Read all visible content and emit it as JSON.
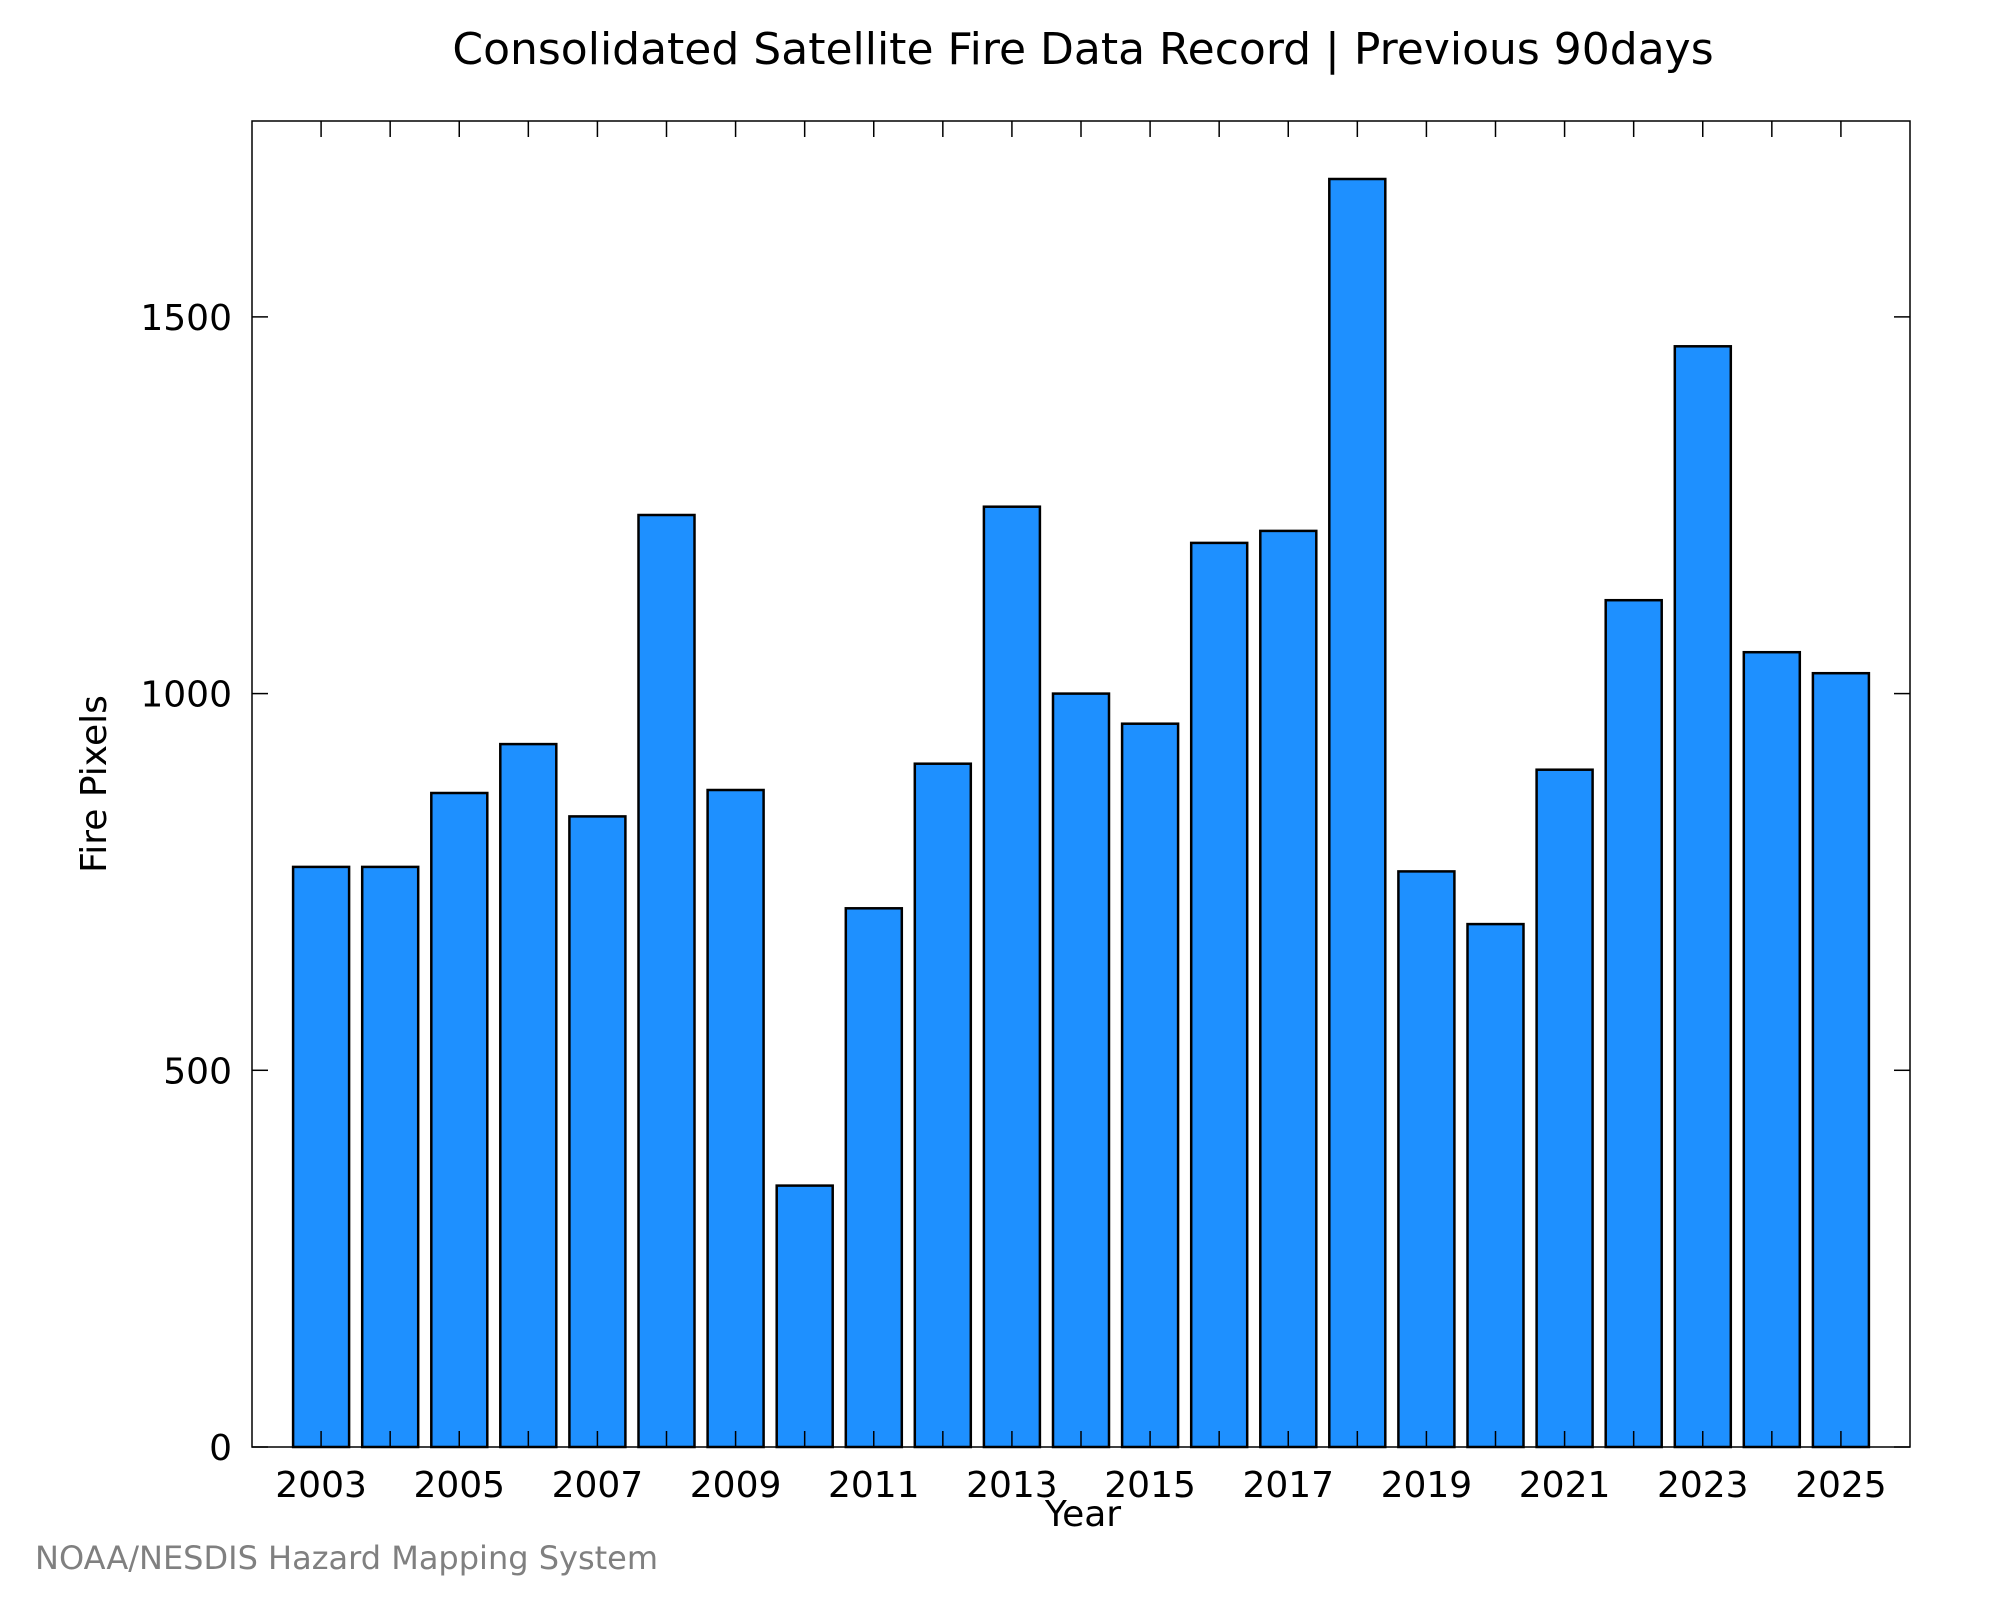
{
  "chart_data": {
    "type": "bar",
    "title": "Consolidated Satellite Fire Data Record | Previous 90days",
    "xlabel": "Year",
    "ylabel": "Fire Pixels",
    "categories": [
      "2003",
      "2004",
      "2005",
      "2006",
      "2007",
      "2008",
      "2009",
      "2010",
      "2011",
      "2012",
      "2013",
      "2014",
      "2015",
      "2016",
      "2017",
      "2018",
      "2019",
      "2020",
      "2021",
      "2022",
      "2023",
      "2024",
      "2025"
    ],
    "values": [
      770,
      770,
      868,
      933,
      837,
      1237,
      872,
      347,
      715,
      907,
      1248,
      1000,
      960,
      1200,
      1216,
      1683,
      764,
      694,
      899,
      1124,
      1461,
      1055,
      1027
    ],
    "x_tick_labels": [
      "2003",
      "2005",
      "2007",
      "2009",
      "2011",
      "2013",
      "2015",
      "2017",
      "2019",
      "2021",
      "2023",
      "2025"
    ],
    "y_ticks": [
      0,
      500,
      1000,
      1500
    ],
    "ylim": [
      0,
      1760
    ],
    "grid": false,
    "bar_color": "#1e90ff",
    "bar_edge_color": "#000000"
  },
  "footer": "NOAA/NESDIS Hazard Mapping System"
}
